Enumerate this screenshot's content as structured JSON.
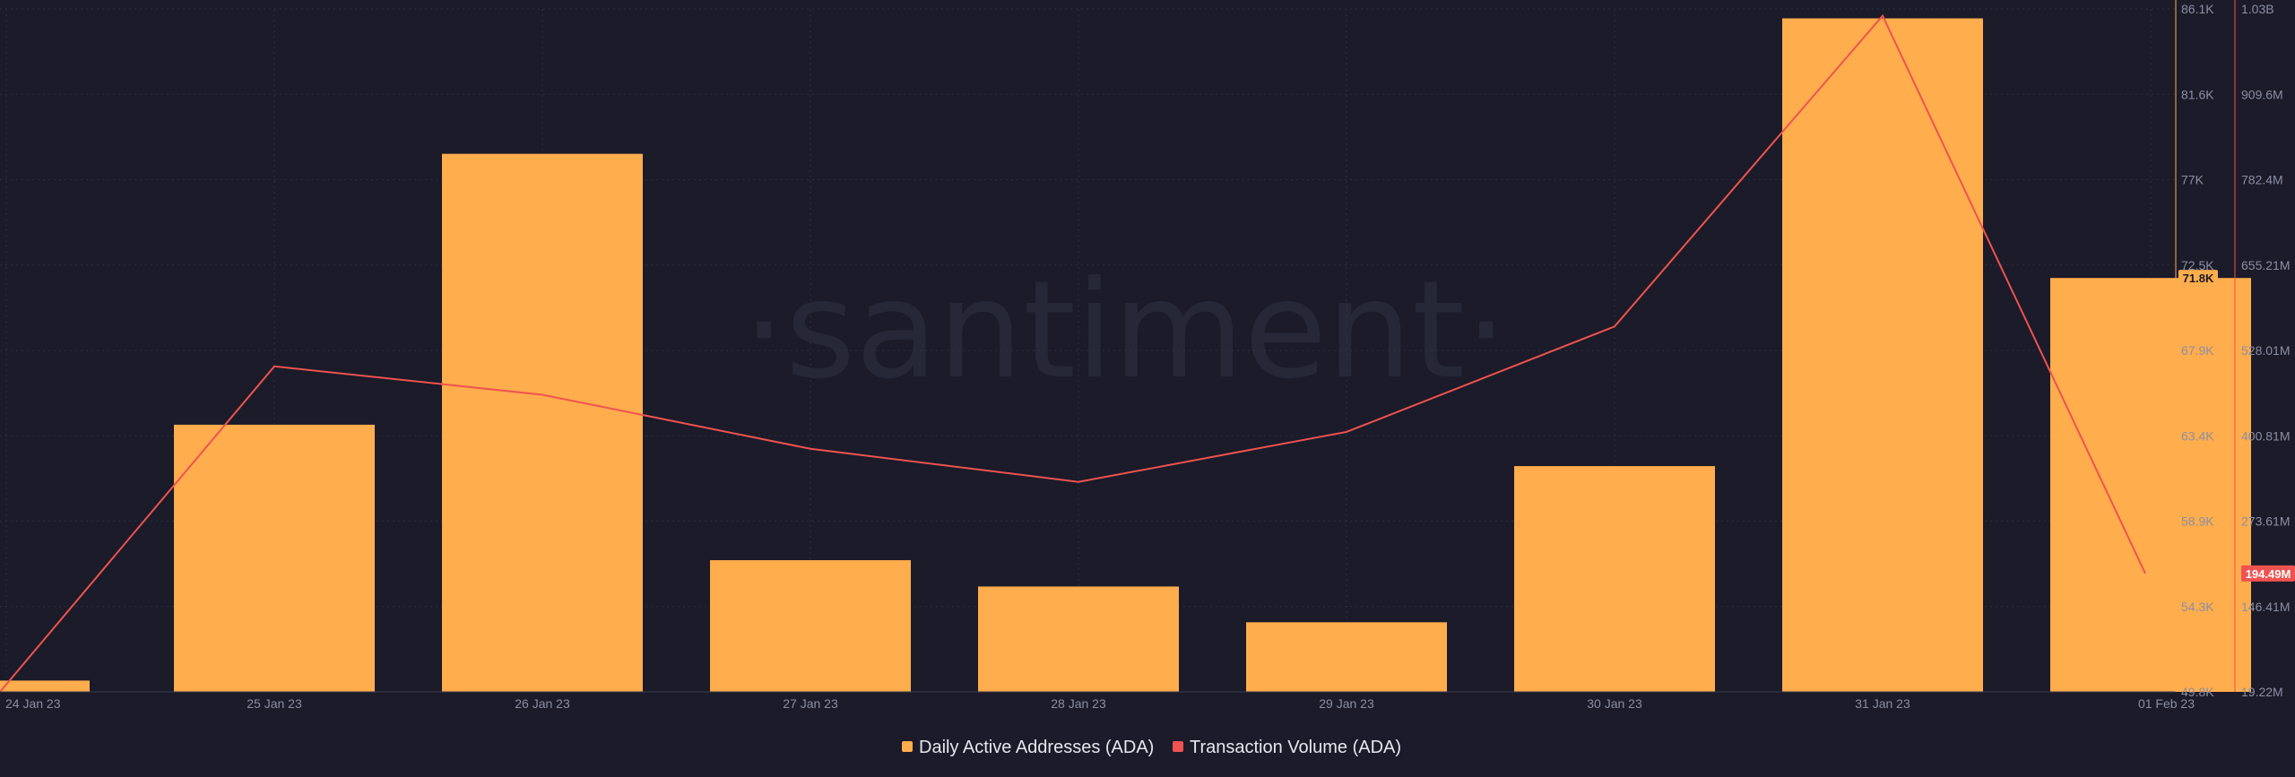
{
  "watermark": "·santiment·",
  "colors": {
    "background": "#1b1b29",
    "grid": "#2e3042",
    "bar": "#ffad4d",
    "line": "#ef5350",
    "axis_left": "#ffad4d",
    "axis_right": "#ef5350",
    "tick_text": "#8b8fa3"
  },
  "chart_data": {
    "type": "bar",
    "categories": [
      "24 Jan 23",
      "25 Jan 23",
      "26 Jan 23",
      "27 Jan 23",
      "28 Jan 23",
      "29 Jan 23",
      "30 Jan 23",
      "31 Jan 23",
      "01 Feb 23"
    ],
    "series": [
      {
        "name": "Daily Active Addresses (ADA)",
        "type": "bar",
        "axis": "right_inner",
        "values": [
          50400,
          64000,
          78400,
          56800,
          55400,
          53500,
          61800,
          85600,
          71800
        ]
      },
      {
        "name": "Transaction Volume (ADA)",
        "type": "line",
        "axis": "right_outer",
        "values": [
          19220000,
          501000000,
          459000000,
          379000000,
          330000000,
          404000000,
          560000000,
          1020000000,
          194490000
        ]
      }
    ],
    "axis_left": {
      "ticks": [
        "49.8K",
        "54.3K",
        "58.9K",
        "63.4K",
        "67.9K",
        "72.5K",
        "77K",
        "81.6K",
        "86.1K"
      ],
      "range": [
        49800,
        86100
      ]
    },
    "axis_right": {
      "ticks": [
        "19.22M",
        "146.41M",
        "273.61M",
        "400.81M",
        "528.01M",
        "655.21M",
        "782.4M",
        "909.6M",
        "1.03B"
      ],
      "range": [
        19220000,
        1030000000
      ]
    },
    "last_value_badges": {
      "bar": "71.8K",
      "line": "194.49M"
    },
    "legend_position": "bottom-center",
    "grid": true
  }
}
